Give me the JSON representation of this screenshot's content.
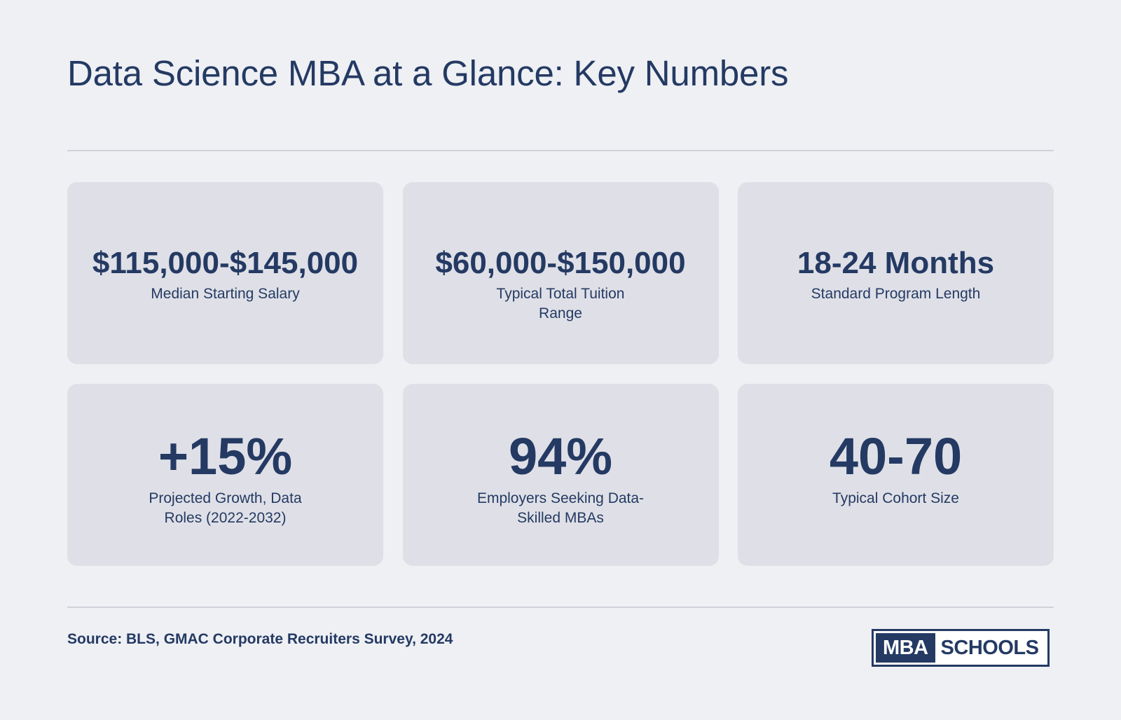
{
  "page": {
    "title": "Data Science MBA at a Glance: Key Numbers"
  },
  "stats_row1": [
    {
      "value": "$115,000-$145,000",
      "label": "Median Starting Salary"
    },
    {
      "value": "$60,000-$150,000",
      "label": "Typical Total Tuition Range"
    },
    {
      "value": "18-24 Months",
      "label": "Standard Program Length"
    }
  ],
  "stats_row2": [
    {
      "value": "+15%",
      "label": "Projected Growth, Data Roles (2022-2032)"
    },
    {
      "value": "94%",
      "label": "Employers Seeking Data-Skilled MBAs"
    },
    {
      "value": "40-70",
      "label": "Typical Cohort Size"
    }
  ],
  "footer": {
    "source": "Source: BLS, GMAC Corporate Recruiters Survey, 2024",
    "logo_mba": "MBA",
    "logo_schools": "SCHOOLS"
  },
  "colors": {
    "background": "#eff0f4",
    "card": "#dfe0e7",
    "text_navy": "#243a63",
    "divider": "#cfd2d9"
  }
}
